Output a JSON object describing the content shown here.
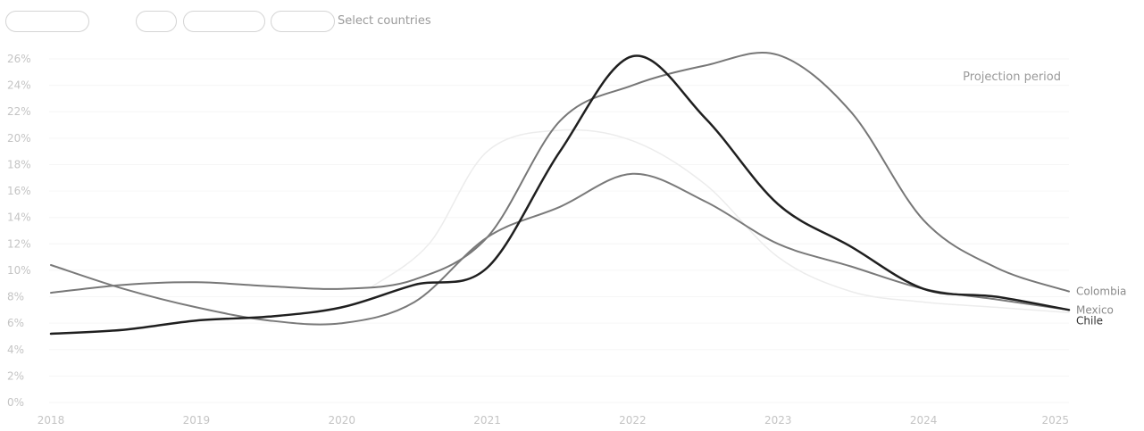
{
  "controls": {
    "pills": [
      "",
      "",
      "",
      ""
    ],
    "select_label": "Select countries"
  },
  "chart_data": {
    "type": "line",
    "x_ticks": [
      "2018",
      "2019",
      "2020",
      "2021",
      "2022",
      "2023",
      "2024",
      "2025"
    ],
    "y_ticks": [
      "0%",
      "2%",
      "4%",
      "6%",
      "8%",
      "10%",
      "12%",
      "14%",
      "16%",
      "18%",
      "20%",
      "22%",
      "24%",
      "26%"
    ],
    "xlim": [
      2018,
      2025
    ],
    "ylim": [
      0,
      26
    ],
    "projection_label": "Projection period",
    "series": [
      {
        "name": "Colombia",
        "color": "#777777",
        "stroke_width": 2,
        "x": [
          2018.0,
          2018.5,
          2019.0,
          2019.5,
          2020.0,
          2020.5,
          2021.0,
          2021.5,
          2022.0,
          2022.5,
          2023.0,
          2023.5,
          2024.0,
          2024.5,
          2025.0
        ],
        "y": [
          8.3,
          8.9,
          9.1,
          8.8,
          8.6,
          9.3,
          12.5,
          21.3,
          24.0,
          25.5,
          26.3,
          22.0,
          13.8,
          10.2,
          8.4
        ]
      },
      {
        "name": "Chile",
        "color": "#1f1f1f",
        "stroke_width": 2.5,
        "x": [
          2018.0,
          2018.5,
          2019.0,
          2019.5,
          2020.0,
          2020.5,
          2021.0,
          2021.5,
          2022.0,
          2022.5,
          2023.0,
          2023.5,
          2024.0,
          2024.5,
          2025.0
        ],
        "y": [
          5.2,
          5.5,
          6.2,
          6.5,
          7.2,
          8.9,
          10.2,
          19.0,
          26.2,
          21.5,
          15.0,
          11.8,
          8.6,
          8.0,
          7.0
        ]
      },
      {
        "name": "Mexico",
        "color": "#7a7a7a",
        "stroke_width": 2,
        "x": [
          2018.0,
          2018.5,
          2019.0,
          2019.5,
          2020.0,
          2020.5,
          2021.0,
          2021.5,
          2022.0,
          2022.5,
          2023.0,
          2023.5,
          2024.0,
          2024.5,
          2025.0
        ],
        "y": [
          10.4,
          8.6,
          7.2,
          6.2,
          6.0,
          7.6,
          12.5,
          14.8,
          17.3,
          15.2,
          12.0,
          10.3,
          8.6,
          7.8,
          7.0
        ]
      },
      {
        "name": "",
        "color": "#ececec",
        "stroke_width": 1.5,
        "x": [
          2020.2,
          2020.6,
          2021.0,
          2021.5,
          2022.0,
          2022.5,
          2023.0,
          2023.5,
          2024.0,
          2024.5,
          2025.0
        ],
        "y": [
          8.7,
          12.0,
          19.0,
          20.6,
          19.8,
          16.5,
          11.0,
          8.4,
          7.6,
          7.2,
          6.8
        ]
      }
    ]
  }
}
